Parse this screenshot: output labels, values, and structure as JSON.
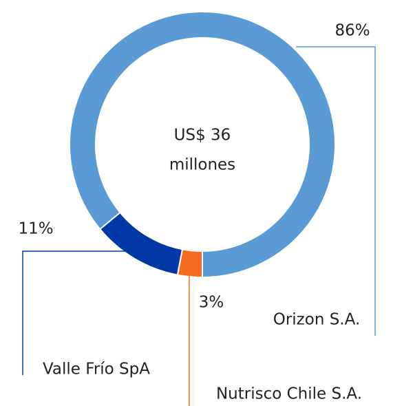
{
  "chart_data": {
    "type": "donut",
    "center_label": [
      "US$ 36",
      "millones"
    ],
    "categories": [
      "Nutrisco Chile S.A.",
      "Valle Frío SpA",
      "Orizon S.A."
    ],
    "values": [
      3,
      11,
      86
    ],
    "value_labels": [
      "3%",
      "11%",
      "86%"
    ],
    "colors": [
      "#f26b21",
      "#0039a6",
      "#5b9bd5"
    ]
  }
}
